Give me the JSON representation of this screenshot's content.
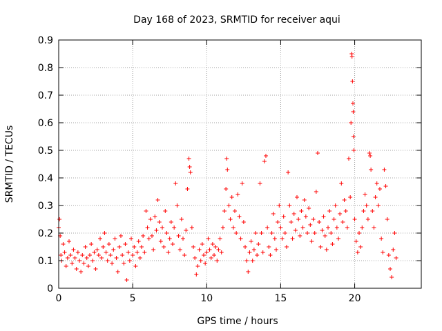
{
  "chart_data": {
    "type": "scatter",
    "title": "Day 168 of 2023, SRMTID for receiver aqui",
    "xlabel": "GPS time / hours",
    "ylabel": "SRMTID / TECUs",
    "xlim": [
      0,
      24.5
    ],
    "ylim": [
      0,
      0.9
    ],
    "xticks": [
      0,
      5,
      10,
      15,
      20
    ],
    "xtick_labels": [
      "0",
      "5",
      "10",
      "15",
      "20"
    ],
    "yticks": [
      0,
      0.1,
      0.2,
      0.3,
      0.4,
      0.5,
      0.6,
      0.7,
      0.8,
      0.9
    ],
    "ytick_labels": [
      "0",
      "0.1",
      "0.2",
      "0.3",
      "0.4",
      "0.5",
      "0.6",
      "0.7",
      "0.8",
      "0.9"
    ],
    "grid": true,
    "marker": "+",
    "color": "#ff0000",
    "series": [
      {
        "name": "SRMTID",
        "points": [
          [
            0.0,
            0.22
          ],
          [
            0.05,
            0.25
          ],
          [
            0.1,
            0.19
          ],
          [
            0.15,
            0.12
          ],
          [
            0.2,
            0.1
          ],
          [
            0.3,
            0.16
          ],
          [
            0.4,
            0.13
          ],
          [
            0.5,
            0.08
          ],
          [
            0.6,
            0.11
          ],
          [
            0.7,
            0.17
          ],
          [
            0.8,
            0.12
          ],
          [
            0.9,
            0.09
          ],
          [
            1.0,
            0.14
          ],
          [
            1.1,
            0.11
          ],
          [
            1.2,
            0.07
          ],
          [
            1.3,
            0.13
          ],
          [
            1.4,
            0.1
          ],
          [
            1.5,
            0.06
          ],
          [
            1.6,
            0.12
          ],
          [
            1.7,
            0.09
          ],
          [
            1.8,
            0.15
          ],
          [
            1.9,
            0.11
          ],
          [
            2.0,
            0.08
          ],
          [
            2.1,
            0.12
          ],
          [
            2.2,
            0.16
          ],
          [
            2.3,
            0.1
          ],
          [
            2.4,
            0.13
          ],
          [
            2.5,
            0.07
          ],
          [
            2.6,
            0.14
          ],
          [
            2.7,
            0.12
          ],
          [
            2.8,
            0.18
          ],
          [
            2.9,
            0.11
          ],
          [
            3.0,
            0.15
          ],
          [
            3.1,
            0.2
          ],
          [
            3.2,
            0.13
          ],
          [
            3.3,
            0.1
          ],
          [
            3.4,
            0.16
          ],
          [
            3.5,
            0.12
          ],
          [
            3.6,
            0.09
          ],
          [
            3.7,
            0.14
          ],
          [
            3.8,
            0.18
          ],
          [
            3.9,
            0.11
          ],
          [
            4.0,
            0.06
          ],
          [
            4.1,
            0.15
          ],
          [
            4.2,
            0.19
          ],
          [
            4.3,
            0.12
          ],
          [
            4.4,
            0.09
          ],
          [
            4.5,
            0.16
          ],
          [
            4.6,
            0.03
          ],
          [
            4.7,
            0.13
          ],
          [
            4.8,
            0.1
          ],
          [
            4.9,
            0.18
          ],
          [
            5.0,
            0.12
          ],
          [
            5.1,
            0.15
          ],
          [
            5.2,
            0.08
          ],
          [
            5.3,
            0.13
          ],
          [
            5.4,
            0.17
          ],
          [
            5.5,
            0.11
          ],
          [
            5.6,
            0.15
          ],
          [
            5.7,
            0.19
          ],
          [
            5.8,
            0.13
          ],
          [
            5.9,
            0.28
          ],
          [
            6.0,
            0.22
          ],
          [
            6.1,
            0.18
          ],
          [
            6.2,
            0.25
          ],
          [
            6.3,
            0.19
          ],
          [
            6.4,
            0.14
          ],
          [
            6.5,
            0.26
          ],
          [
            6.6,
            0.21
          ],
          [
            6.7,
            0.32
          ],
          [
            6.8,
            0.24
          ],
          [
            6.9,
            0.17
          ],
          [
            7.0,
            0.22
          ],
          [
            7.1,
            0.15
          ],
          [
            7.2,
            0.28
          ],
          [
            7.3,
            0.2
          ],
          [
            7.4,
            0.13
          ],
          [
            7.5,
            0.18
          ],
          [
            7.6,
            0.24
          ],
          [
            7.7,
            0.16
          ],
          [
            7.8,
            0.22
          ],
          [
            7.9,
            0.38
          ],
          [
            8.0,
            0.3
          ],
          [
            8.1,
            0.19
          ],
          [
            8.2,
            0.14
          ],
          [
            8.3,
            0.25
          ],
          [
            8.4,
            0.18
          ],
          [
            8.5,
            0.12
          ],
          [
            8.6,
            0.21
          ],
          [
            8.7,
            0.36
          ],
          [
            8.8,
            0.47
          ],
          [
            8.85,
            0.44
          ],
          [
            8.9,
            0.42
          ],
          [
            9.0,
            0.22
          ],
          [
            9.1,
            0.15
          ],
          [
            9.2,
            0.11
          ],
          [
            9.3,
            0.05
          ],
          [
            9.4,
            0.08
          ],
          [
            9.5,
            0.14
          ],
          [
            9.6,
            0.1
          ],
          [
            9.7,
            0.16
          ],
          [
            9.8,
            0.12
          ],
          [
            9.9,
            0.09
          ],
          [
            10.0,
            0.13
          ],
          [
            10.1,
            0.18
          ],
          [
            10.2,
            0.14
          ],
          [
            10.3,
            0.11
          ],
          [
            10.4,
            0.16
          ],
          [
            10.5,
            0.12
          ],
          [
            10.6,
            0.15
          ],
          [
            10.7,
            0.1
          ],
          [
            10.8,
            0.14
          ],
          [
            10.9,
            0.18
          ],
          [
            11.0,
            0.13
          ],
          [
            11.1,
            0.22
          ],
          [
            11.2,
            0.28
          ],
          [
            11.3,
            0.36
          ],
          [
            11.35,
            0.47
          ],
          [
            11.4,
            0.43
          ],
          [
            11.5,
            0.3
          ],
          [
            11.6,
            0.25
          ],
          [
            11.7,
            0.33
          ],
          [
            11.8,
            0.22
          ],
          [
            11.9,
            0.28
          ],
          [
            12.0,
            0.2
          ],
          [
            12.1,
            0.34
          ],
          [
            12.2,
            0.26
          ],
          [
            12.3,
            0.18
          ],
          [
            12.4,
            0.38
          ],
          [
            12.5,
            0.24
          ],
          [
            12.6,
            0.15
          ],
          [
            12.7,
            0.1
          ],
          [
            12.8,
            0.06
          ],
          [
            12.9,
            0.13
          ],
          [
            13.0,
            0.17
          ],
          [
            13.1,
            0.1
          ],
          [
            13.2,
            0.14
          ],
          [
            13.3,
            0.2
          ],
          [
            13.4,
            0.12
          ],
          [
            13.5,
            0.16
          ],
          [
            13.6,
            0.38
          ],
          [
            13.7,
            0.2
          ],
          [
            13.8,
            0.13
          ],
          [
            13.9,
            0.46
          ],
          [
            14.0,
            0.48
          ],
          [
            14.1,
            0.22
          ],
          [
            14.2,
            0.15
          ],
          [
            14.3,
            0.12
          ],
          [
            14.4,
            0.2
          ],
          [
            14.5,
            0.27
          ],
          [
            14.6,
            0.18
          ],
          [
            14.7,
            0.14
          ],
          [
            14.8,
            0.24
          ],
          [
            14.9,
            0.3
          ],
          [
            15.0,
            0.22
          ],
          [
            15.1,
            0.18
          ],
          [
            15.2,
            0.26
          ],
          [
            15.3,
            0.2
          ],
          [
            15.4,
            0.15
          ],
          [
            15.5,
            0.42
          ],
          [
            15.6,
            0.3
          ],
          [
            15.7,
            0.24
          ],
          [
            15.8,
            0.18
          ],
          [
            15.9,
            0.27
          ],
          [
            16.0,
            0.21
          ],
          [
            16.1,
            0.33
          ],
          [
            16.2,
            0.25
          ],
          [
            16.3,
            0.19
          ],
          [
            16.4,
            0.28
          ],
          [
            16.5,
            0.22
          ],
          [
            16.6,
            0.32
          ],
          [
            16.7,
            0.26
          ],
          [
            16.8,
            0.2
          ],
          [
            16.9,
            0.29
          ],
          [
            17.0,
            0.23
          ],
          [
            17.1,
            0.17
          ],
          [
            17.2,
            0.25
          ],
          [
            17.3,
            0.2
          ],
          [
            17.4,
            0.35
          ],
          [
            17.5,
            0.49
          ],
          [
            17.6,
            0.24
          ],
          [
            17.7,
            0.15
          ],
          [
            17.8,
            0.21
          ],
          [
            17.9,
            0.26
          ],
          [
            18.0,
            0.19
          ],
          [
            18.1,
            0.14
          ],
          [
            18.2,
            0.22
          ],
          [
            18.3,
            0.28
          ],
          [
            18.4,
            0.2
          ],
          [
            18.5,
            0.16
          ],
          [
            18.6,
            0.25
          ],
          [
            18.7,
            0.3
          ],
          [
            18.8,
            0.22
          ],
          [
            18.9,
            0.18
          ],
          [
            19.0,
            0.27
          ],
          [
            19.1,
            0.38
          ],
          [
            19.2,
            0.24
          ],
          [
            19.3,
            0.32
          ],
          [
            19.4,
            0.28
          ],
          [
            19.5,
            0.22
          ],
          [
            19.6,
            0.47
          ],
          [
            19.7,
            0.33
          ],
          [
            19.75,
            0.6
          ],
          [
            19.8,
            0.85
          ],
          [
            19.82,
            0.84
          ],
          [
            19.85,
            0.75
          ],
          [
            19.88,
            0.67
          ],
          [
            19.9,
            0.64
          ],
          [
            19.92,
            0.55
          ],
          [
            19.95,
            0.5
          ],
          [
            20.0,
            0.25
          ],
          [
            20.1,
            0.17
          ],
          [
            20.2,
            0.13
          ],
          [
            20.3,
            0.2
          ],
          [
            20.4,
            0.15
          ],
          [
            20.5,
            0.22
          ],
          [
            20.6,
            0.28
          ],
          [
            20.7,
            0.34
          ],
          [
            20.8,
            0.3
          ],
          [
            20.9,
            0.25
          ],
          [
            21.0,
            0.49
          ],
          [
            21.05,
            0.48
          ],
          [
            21.1,
            0.43
          ],
          [
            21.2,
            0.28
          ],
          [
            21.3,
            0.22
          ],
          [
            21.4,
            0.33
          ],
          [
            21.5,
            0.38
          ],
          [
            21.6,
            0.3
          ],
          [
            21.7,
            0.36
          ],
          [
            21.8,
            0.18
          ],
          [
            21.9,
            0.13
          ],
          [
            22.0,
            0.43
          ],
          [
            22.1,
            0.37
          ],
          [
            22.2,
            0.25
          ],
          [
            22.3,
            0.12
          ],
          [
            22.4,
            0.07
          ],
          [
            22.5,
            0.04
          ],
          [
            22.6,
            0.14
          ],
          [
            22.7,
            0.2
          ],
          [
            22.8,
            0.11
          ]
        ]
      }
    ]
  }
}
